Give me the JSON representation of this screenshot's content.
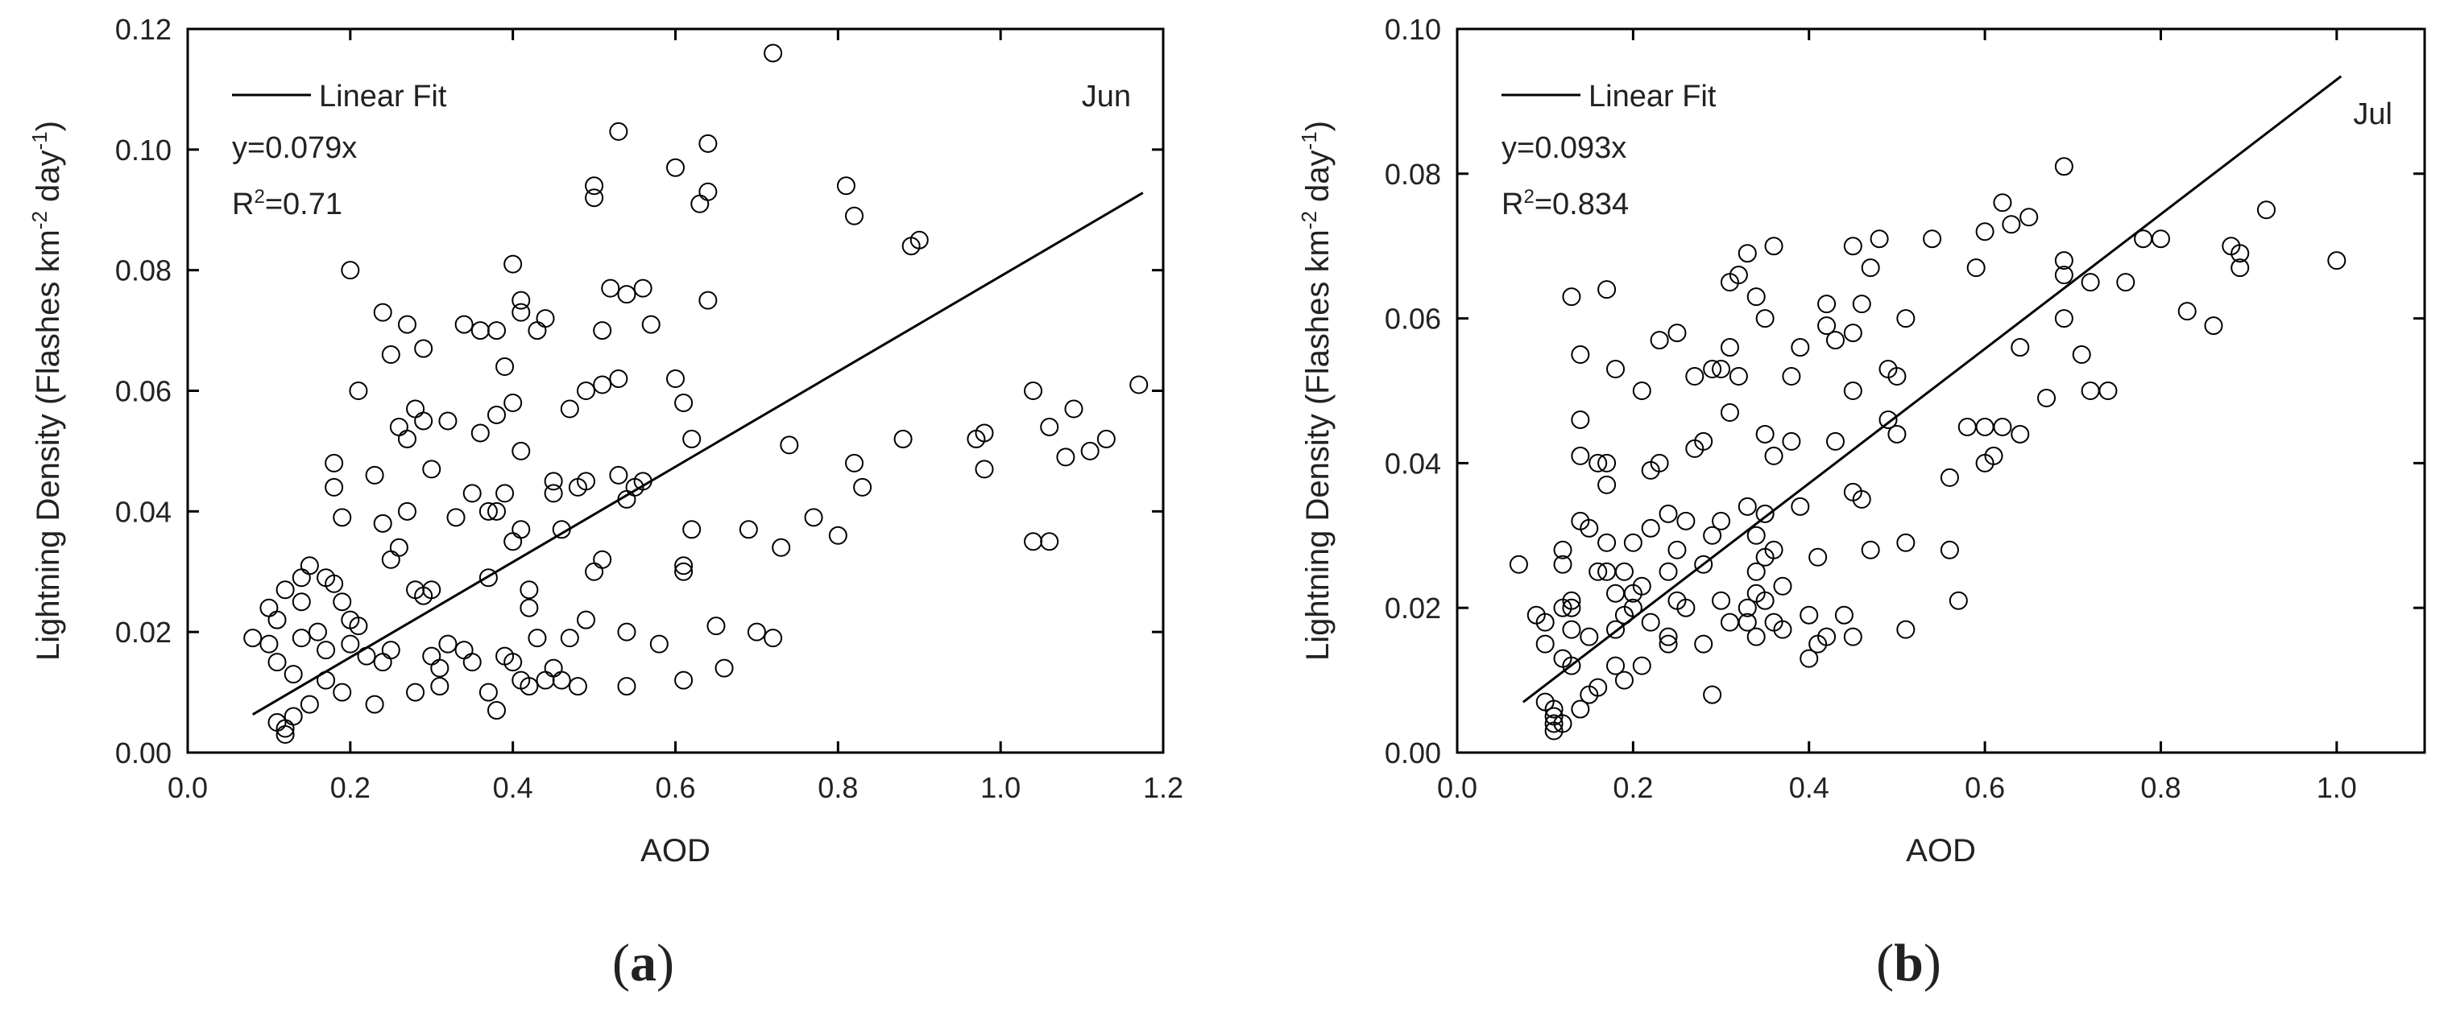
{
  "chart_data": [
    {
      "type": "scatter",
      "panel_label": {
        "open": "(",
        "letter": "a",
        "close": ")"
      },
      "month": "Jun",
      "xlabel": "AOD",
      "ylabel": {
        "pre": "Lightning Density (Flashes km",
        "sup1": "-2",
        "mid": " day",
        "sup2": "-1",
        "post": ")"
      },
      "xlim": [
        0.0,
        1.2
      ],
      "ylim": [
        0.0,
        0.12
      ],
      "xticks": [
        0.0,
        0.2,
        0.4,
        0.6,
        0.8,
        1.0,
        1.2
      ],
      "xtick_labels": [
        "0.0",
        "0.2",
        "0.4",
        "0.6",
        "0.8",
        "1.0",
        "1.2"
      ],
      "yticks": [
        0.0,
        0.02,
        0.04,
        0.06,
        0.08,
        0.1,
        0.12
      ],
      "ytick_labels": [
        "0.00",
        "0.02",
        "0.04",
        "0.06",
        "0.08",
        "0.10",
        "0.12"
      ],
      "legend": {
        "label": "Linear Fit",
        "equation": "y=0.079x",
        "r2_prefix": "R",
        "r2_sup": "2",
        "r2_value": "=0.71"
      },
      "fit": {
        "slope": 0.079,
        "x_range": [
          0.08,
          1.175
        ]
      },
      "points": [
        [
          0.08,
          0.019
        ],
        [
          0.1,
          0.024
        ],
        [
          0.1,
          0.018
        ],
        [
          0.11,
          0.022
        ],
        [
          0.11,
          0.015
        ],
        [
          0.12,
          0.027
        ],
        [
          0.11,
          0.005
        ],
        [
          0.12,
          0.004
        ],
        [
          0.12,
          0.003
        ],
        [
          0.13,
          0.006
        ],
        [
          0.13,
          0.013
        ],
        [
          0.14,
          0.019
        ],
        [
          0.14,
          0.025
        ],
        [
          0.14,
          0.029
        ],
        [
          0.15,
          0.031
        ],
        [
          0.15,
          0.008
        ],
        [
          0.16,
          0.02
        ],
        [
          0.17,
          0.017
        ],
        [
          0.17,
          0.012
        ],
        [
          0.17,
          0.029
        ],
        [
          0.18,
          0.028
        ],
        [
          0.18,
          0.044
        ],
        [
          0.18,
          0.048
        ],
        [
          0.19,
          0.039
        ],
        [
          0.19,
          0.025
        ],
        [
          0.19,
          0.01
        ],
        [
          0.2,
          0.022
        ],
        [
          0.2,
          0.018
        ],
        [
          0.2,
          0.08
        ],
        [
          0.21,
          0.06
        ],
        [
          0.21,
          0.021
        ],
        [
          0.22,
          0.016
        ],
        [
          0.23,
          0.046
        ],
        [
          0.23,
          0.008
        ],
        [
          0.24,
          0.015
        ],
        [
          0.24,
          0.038
        ],
        [
          0.24,
          0.073
        ],
        [
          0.25,
          0.066
        ],
        [
          0.25,
          0.032
        ],
        [
          0.25,
          0.017
        ],
        [
          0.26,
          0.054
        ],
        [
          0.26,
          0.034
        ],
        [
          0.27,
          0.071
        ],
        [
          0.27,
          0.04
        ],
        [
          0.27,
          0.052
        ],
        [
          0.28,
          0.027
        ],
        [
          0.28,
          0.057
        ],
        [
          0.28,
          0.01
        ],
        [
          0.29,
          0.055
        ],
        [
          0.29,
          0.026
        ],
        [
          0.29,
          0.067
        ],
        [
          0.3,
          0.047
        ],
        [
          0.3,
          0.027
        ],
        [
          0.3,
          0.016
        ],
        [
          0.31,
          0.011
        ],
        [
          0.31,
          0.014
        ],
        [
          0.32,
          0.055
        ],
        [
          0.32,
          0.018
        ],
        [
          0.33,
          0.039
        ],
        [
          0.34,
          0.017
        ],
        [
          0.34,
          0.071
        ],
        [
          0.35,
          0.043
        ],
        [
          0.35,
          0.015
        ],
        [
          0.36,
          0.07
        ],
        [
          0.36,
          0.053
        ],
        [
          0.37,
          0.04
        ],
        [
          0.37,
          0.029
        ],
        [
          0.37,
          0.01
        ],
        [
          0.38,
          0.007
        ],
        [
          0.38,
          0.07
        ],
        [
          0.38,
          0.056
        ],
        [
          0.38,
          0.04
        ],
        [
          0.39,
          0.043
        ],
        [
          0.39,
          0.016
        ],
        [
          0.39,
          0.064
        ],
        [
          0.4,
          0.058
        ],
        [
          0.4,
          0.081
        ],
        [
          0.4,
          0.035
        ],
        [
          0.4,
          0.015
        ],
        [
          0.41,
          0.073
        ],
        [
          0.41,
          0.075
        ],
        [
          0.41,
          0.05
        ],
        [
          0.41,
          0.037
        ],
        [
          0.41,
          0.012
        ],
        [
          0.42,
          0.027
        ],
        [
          0.42,
          0.024
        ],
        [
          0.42,
          0.011
        ],
        [
          0.43,
          0.019
        ],
        [
          0.43,
          0.07
        ],
        [
          0.44,
          0.072
        ],
        [
          0.44,
          0.012
        ],
        [
          0.45,
          0.045
        ],
        [
          0.45,
          0.043
        ],
        [
          0.45,
          0.014
        ],
        [
          0.46,
          0.037
        ],
        [
          0.46,
          0.012
        ],
        [
          0.47,
          0.019
        ],
        [
          0.47,
          0.057
        ],
        [
          0.48,
          0.011
        ],
        [
          0.48,
          0.044
        ],
        [
          0.49,
          0.022
        ],
        [
          0.49,
          0.045
        ],
        [
          0.49,
          0.06
        ],
        [
          0.5,
          0.03
        ],
        [
          0.5,
          0.092
        ],
        [
          0.5,
          0.094
        ],
        [
          0.51,
          0.061
        ],
        [
          0.51,
          0.07
        ],
        [
          0.51,
          0.032
        ],
        [
          0.52,
          0.077
        ],
        [
          0.53,
          0.046
        ],
        [
          0.53,
          0.103
        ],
        [
          0.53,
          0.062
        ],
        [
          0.54,
          0.042
        ],
        [
          0.54,
          0.076
        ],
        [
          0.54,
          0.02
        ],
        [
          0.54,
          0.011
        ],
        [
          0.55,
          0.044
        ],
        [
          0.56,
          0.077
        ],
        [
          0.56,
          0.045
        ],
        [
          0.57,
          0.071
        ],
        [
          0.58,
          0.018
        ],
        [
          0.6,
          0.097
        ],
        [
          0.6,
          0.062
        ],
        [
          0.61,
          0.058
        ],
        [
          0.61,
          0.03
        ],
        [
          0.61,
          0.031
        ],
        [
          0.61,
          0.012
        ],
        [
          0.62,
          0.037
        ],
        [
          0.62,
          0.052
        ],
        [
          0.63,
          0.091
        ],
        [
          0.64,
          0.093
        ],
        [
          0.64,
          0.101
        ],
        [
          0.64,
          0.075
        ],
        [
          0.65,
          0.021
        ],
        [
          0.66,
          0.014
        ],
        [
          0.69,
          0.037
        ],
        [
          0.7,
          0.02
        ],
        [
          0.72,
          0.019
        ],
        [
          0.72,
          0.116
        ],
        [
          0.73,
          0.034
        ],
        [
          0.74,
          0.051
        ],
        [
          0.77,
          0.039
        ],
        [
          0.8,
          0.036
        ],
        [
          0.81,
          0.094
        ],
        [
          0.82,
          0.089
        ],
        [
          0.82,
          0.048
        ],
        [
          0.83,
          0.044
        ],
        [
          0.88,
          0.052
        ],
        [
          0.89,
          0.084
        ],
        [
          0.9,
          0.085
        ],
        [
          0.97,
          0.052
        ],
        [
          0.98,
          0.053
        ],
        [
          0.98,
          0.047
        ],
        [
          1.04,
          0.035
        ],
        [
          1.04,
          0.06
        ],
        [
          1.06,
          0.035
        ],
        [
          1.06,
          0.054
        ],
        [
          1.08,
          0.049
        ],
        [
          1.09,
          0.057
        ],
        [
          1.11,
          0.05
        ],
        [
          1.13,
          0.052
        ],
        [
          1.17,
          0.061
        ]
      ]
    },
    {
      "type": "scatter",
      "panel_label": {
        "open": "(",
        "letter": "b",
        "close": ")"
      },
      "month": "Jul",
      "xlabel": "AOD",
      "ylabel": {
        "pre": "Lightning Density (Flashes km",
        "sup1": "-2",
        "mid": " day",
        "sup2": "-1",
        "post": ")"
      },
      "xlim": [
        0.0,
        1.1
      ],
      "ylim": [
        0.0,
        0.1
      ],
      "xticks": [
        0.0,
        0.2,
        0.4,
        0.6,
        0.8,
        1.0
      ],
      "xtick_labels": [
        "0.0",
        "0.2",
        "0.4",
        "0.6",
        "0.8",
        "1.0"
      ],
      "yticks": [
        0.0,
        0.02,
        0.04,
        0.06,
        0.08,
        0.1
      ],
      "ytick_labels": [
        "0.00",
        "0.02",
        "0.04",
        "0.06",
        "0.08",
        "0.10"
      ],
      "legend": {
        "label": "Linear Fit",
        "equation": "y=0.093x",
        "r2_prefix": "R",
        "r2_sup": "2",
        "r2_value": "=0.834"
      },
      "fit": {
        "slope": 0.093,
        "x_range": [
          0.075,
          1.005
        ]
      },
      "points": [
        [
          0.07,
          0.026
        ],
        [
          0.09,
          0.019
        ],
        [
          0.1,
          0.018
        ],
        [
          0.1,
          0.015
        ],
        [
          0.1,
          0.007
        ],
        [
          0.11,
          0.005
        ],
        [
          0.11,
          0.004
        ],
        [
          0.11,
          0.006
        ],
        [
          0.11,
          0.003
        ],
        [
          0.12,
          0.004
        ],
        [
          0.12,
          0.02
        ],
        [
          0.12,
          0.013
        ],
        [
          0.12,
          0.026
        ],
        [
          0.12,
          0.028
        ],
        [
          0.13,
          0.017
        ],
        [
          0.13,
          0.02
        ],
        [
          0.13,
          0.063
        ],
        [
          0.13,
          0.021
        ],
        [
          0.13,
          0.012
        ],
        [
          0.14,
          0.006
        ],
        [
          0.14,
          0.055
        ],
        [
          0.14,
          0.046
        ],
        [
          0.14,
          0.041
        ],
        [
          0.14,
          0.032
        ],
        [
          0.15,
          0.016
        ],
        [
          0.15,
          0.031
        ],
        [
          0.15,
          0.008
        ],
        [
          0.16,
          0.04
        ],
        [
          0.16,
          0.025
        ],
        [
          0.16,
          0.009
        ],
        [
          0.17,
          0.037
        ],
        [
          0.17,
          0.04
        ],
        [
          0.17,
          0.029
        ],
        [
          0.17,
          0.025
        ],
        [
          0.17,
          0.064
        ],
        [
          0.18,
          0.053
        ],
        [
          0.18,
          0.022
        ],
        [
          0.18,
          0.017
        ],
        [
          0.18,
          0.012
        ],
        [
          0.19,
          0.025
        ],
        [
          0.19,
          0.019
        ],
        [
          0.19,
          0.01
        ],
        [
          0.2,
          0.02
        ],
        [
          0.2,
          0.029
        ],
        [
          0.2,
          0.022
        ],
        [
          0.21,
          0.05
        ],
        [
          0.21,
          0.023
        ],
        [
          0.21,
          0.012
        ],
        [
          0.22,
          0.039
        ],
        [
          0.22,
          0.031
        ],
        [
          0.22,
          0.018
        ],
        [
          0.23,
          0.04
        ],
        [
          0.23,
          0.057
        ],
        [
          0.24,
          0.033
        ],
        [
          0.24,
          0.016
        ],
        [
          0.24,
          0.015
        ],
        [
          0.24,
          0.025
        ],
        [
          0.25,
          0.058
        ],
        [
          0.25,
          0.028
        ],
        [
          0.25,
          0.021
        ],
        [
          0.26,
          0.032
        ],
        [
          0.26,
          0.02
        ],
        [
          0.27,
          0.042
        ],
        [
          0.27,
          0.052
        ],
        [
          0.28,
          0.043
        ],
        [
          0.28,
          0.015
        ],
        [
          0.28,
          0.026
        ],
        [
          0.29,
          0.053
        ],
        [
          0.29,
          0.03
        ],
        [
          0.29,
          0.008
        ],
        [
          0.3,
          0.053
        ],
        [
          0.3,
          0.032
        ],
        [
          0.3,
          0.021
        ],
        [
          0.31,
          0.047
        ],
        [
          0.31,
          0.018
        ],
        [
          0.31,
          0.056
        ],
        [
          0.31,
          0.065
        ],
        [
          0.32,
          0.066
        ],
        [
          0.32,
          0.052
        ],
        [
          0.33,
          0.018
        ],
        [
          0.33,
          0.069
        ],
        [
          0.33,
          0.02
        ],
        [
          0.33,
          0.034
        ],
        [
          0.34,
          0.063
        ],
        [
          0.34,
          0.03
        ],
        [
          0.34,
          0.025
        ],
        [
          0.34,
          0.022
        ],
        [
          0.34,
          0.016
        ],
        [
          0.35,
          0.06
        ],
        [
          0.35,
          0.044
        ],
        [
          0.35,
          0.033
        ],
        [
          0.35,
          0.021
        ],
        [
          0.35,
          0.027
        ],
        [
          0.36,
          0.07
        ],
        [
          0.36,
          0.041
        ],
        [
          0.36,
          0.028
        ],
        [
          0.36,
          0.018
        ],
        [
          0.37,
          0.017
        ],
        [
          0.37,
          0.023
        ],
        [
          0.38,
          0.052
        ],
        [
          0.38,
          0.043
        ],
        [
          0.39,
          0.056
        ],
        [
          0.39,
          0.034
        ],
        [
          0.4,
          0.019
        ],
        [
          0.4,
          0.013
        ],
        [
          0.41,
          0.027
        ],
        [
          0.41,
          0.015
        ],
        [
          0.42,
          0.059
        ],
        [
          0.42,
          0.062
        ],
        [
          0.42,
          0.016
        ],
        [
          0.43,
          0.057
        ],
        [
          0.43,
          0.043
        ],
        [
          0.44,
          0.019
        ],
        [
          0.45,
          0.07
        ],
        [
          0.45,
          0.058
        ],
        [
          0.45,
          0.05
        ],
        [
          0.45,
          0.036
        ],
        [
          0.45,
          0.016
        ],
        [
          0.46,
          0.062
        ],
        [
          0.46,
          0.035
        ],
        [
          0.47,
          0.067
        ],
        [
          0.47,
          0.028
        ],
        [
          0.48,
          0.071
        ],
        [
          0.49,
          0.053
        ],
        [
          0.49,
          0.046
        ],
        [
          0.5,
          0.044
        ],
        [
          0.5,
          0.052
        ],
        [
          0.51,
          0.06
        ],
        [
          0.51,
          0.017
        ],
        [
          0.51,
          0.029
        ],
        [
          0.54,
          0.071
        ],
        [
          0.56,
          0.038
        ],
        [
          0.56,
          0.028
        ],
        [
          0.57,
          0.021
        ],
        [
          0.58,
          0.045
        ],
        [
          0.59,
          0.067
        ],
        [
          0.6,
          0.045
        ],
        [
          0.6,
          0.04
        ],
        [
          0.6,
          0.072
        ],
        [
          0.61,
          0.041
        ],
        [
          0.62,
          0.076
        ],
        [
          0.62,
          0.045
        ],
        [
          0.63,
          0.073
        ],
        [
          0.64,
          0.056
        ],
        [
          0.64,
          0.044
        ],
        [
          0.65,
          0.074
        ],
        [
          0.67,
          0.049
        ],
        [
          0.69,
          0.066
        ],
        [
          0.69,
          0.068
        ],
        [
          0.69,
          0.06
        ],
        [
          0.69,
          0.081
        ],
        [
          0.71,
          0.055
        ],
        [
          0.72,
          0.05
        ],
        [
          0.72,
          0.065
        ],
        [
          0.74,
          0.05
        ],
        [
          0.76,
          0.065
        ],
        [
          0.78,
          0.071
        ],
        [
          0.8,
          0.071
        ],
        [
          0.83,
          0.061
        ],
        [
          0.86,
          0.059
        ],
        [
          0.88,
          0.07
        ],
        [
          0.89,
          0.069
        ],
        [
          0.89,
          0.067
        ],
        [
          0.92,
          0.075
        ],
        [
          1.0,
          0.068
        ]
      ]
    }
  ]
}
